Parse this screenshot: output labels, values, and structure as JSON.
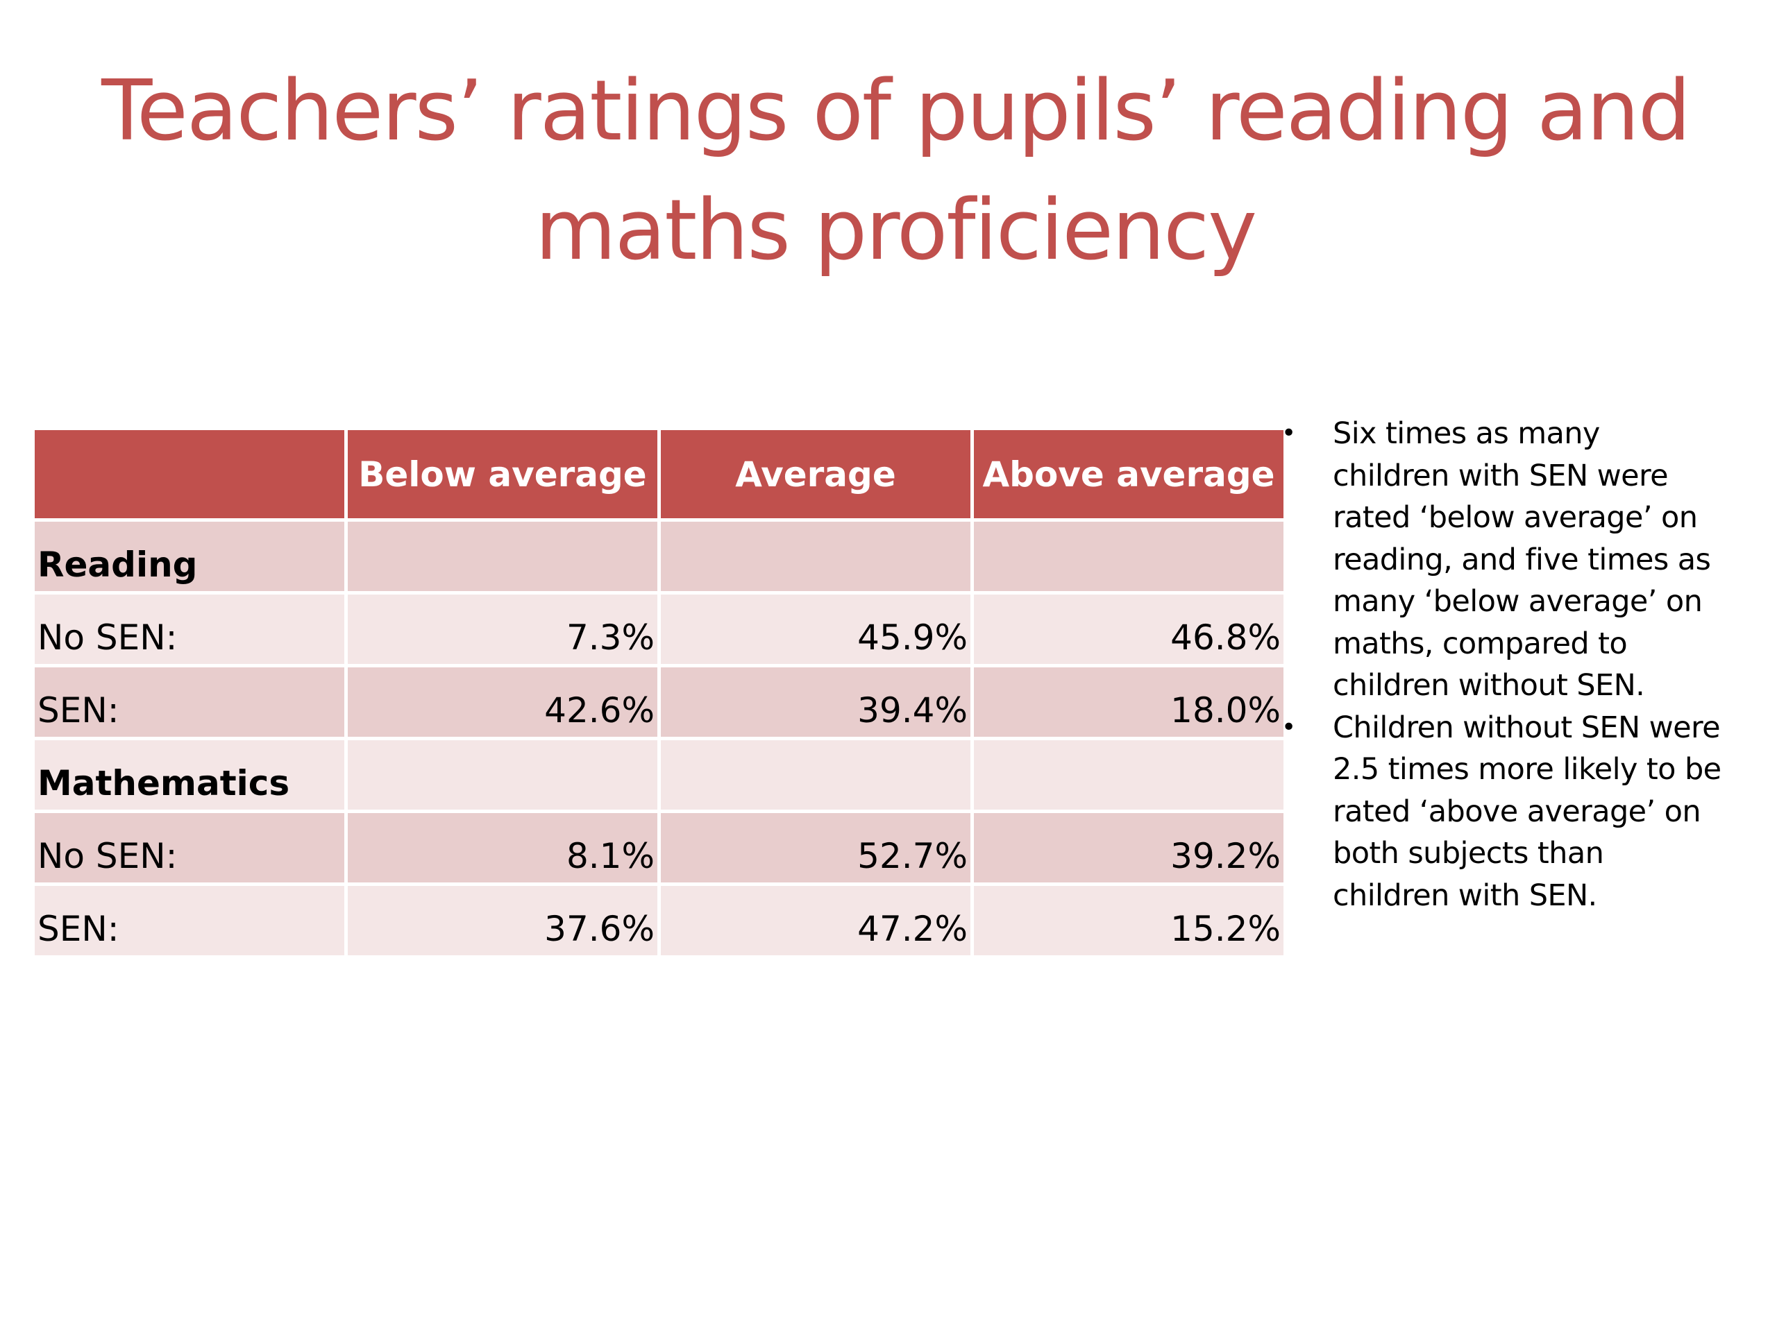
{
  "slide": {
    "title_lines": [
      "Teachers’ ratings of pupils’ reading and",
      "maths proficiency"
    ]
  },
  "colors": {
    "title": "#c0504d",
    "header_bg": "#c0504d",
    "row_dark": "#e8cdcd",
    "row_light": "#f4e6e6"
  },
  "table": {
    "headers": [
      "",
      "Below average",
      "Average",
      "Above average"
    ],
    "rows": [
      {
        "label": "Reading",
        "values": [
          "",
          "",
          ""
        ],
        "section": true,
        "shade": "dark"
      },
      {
        "label": "No SEN:",
        "values": [
          "7.3%",
          "45.9%",
          "46.8%"
        ],
        "section": false,
        "shade": "light"
      },
      {
        "label": "SEN:",
        "values": [
          "42.6%",
          "39.4%",
          "18.0%"
        ],
        "section": false,
        "shade": "dark"
      },
      {
        "label": "Mathematics",
        "values": [
          "",
          "",
          ""
        ],
        "section": true,
        "shade": "light"
      },
      {
        "label": "No SEN:",
        "values": [
          "8.1%",
          "52.7%",
          "39.2%"
        ],
        "section": false,
        "shade": "dark"
      },
      {
        "label": "SEN:",
        "values": [
          "37.6%",
          "47.2%",
          "15.2%"
        ],
        "section": false,
        "shade": "light"
      }
    ]
  },
  "notes": {
    "bullet_glyph": "•",
    "items": [
      "Six times as many children with SEN were rated ‘below average’ on reading, and five times as many ‘below average’ on maths, compared to children without SEN.",
      "Children without SEN were 2.5 times more likely to be rated ‘above average’ on both subjects than children with SEN."
    ]
  }
}
